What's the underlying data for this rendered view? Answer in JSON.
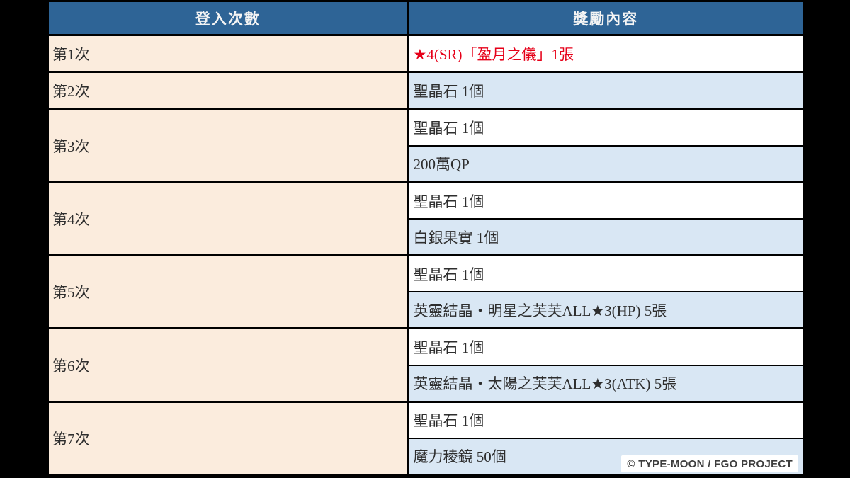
{
  "colors": {
    "header_bg": "#2e6496",
    "header_text": "#f4f4f4",
    "label_bg": "#fbecdd",
    "reward_bg": "#ffffff",
    "reward_alt_bg": "#d9e7f4",
    "body_text": "#2e2e2e",
    "highlight_text": "#e60019",
    "border": "#000000"
  },
  "table": {
    "column_headers": [
      "登入次數",
      "獎勵內容"
    ],
    "rows": [
      {
        "label": "第1次",
        "rewards": [
          {
            "text": "★4(SR)「盈月之儀」1張",
            "highlight": true
          }
        ]
      },
      {
        "label": "第2次",
        "rewards": [
          {
            "text": "聖晶石 1個",
            "highlight": false
          }
        ]
      },
      {
        "label": "第3次",
        "rewards": [
          {
            "text": "聖晶石 1個",
            "highlight": false
          },
          {
            "text": "200萬QP",
            "highlight": false
          }
        ]
      },
      {
        "label": "第4次",
        "rewards": [
          {
            "text": "聖晶石 1個",
            "highlight": false
          },
          {
            "text": "白銀果實 1個",
            "highlight": false
          }
        ]
      },
      {
        "label": "第5次",
        "rewards": [
          {
            "text": "聖晶石 1個",
            "highlight": false
          },
          {
            "text": "英靈結晶・明星之芙芙ALL★3(HP) 5張",
            "highlight": false
          }
        ]
      },
      {
        "label": "第6次",
        "rewards": [
          {
            "text": "聖晶石 1個",
            "highlight": false
          },
          {
            "text": "英靈結晶・太陽之芙芙ALL★3(ATK) 5張",
            "highlight": false
          }
        ]
      },
      {
        "label": "第7次",
        "rewards": [
          {
            "text": "聖晶石 1個",
            "highlight": false
          },
          {
            "text": "魔力稜鏡 50個",
            "highlight": false
          }
        ]
      }
    ]
  },
  "footer": {
    "copyright": "© TYPE-MOON / FGO PROJECT"
  }
}
